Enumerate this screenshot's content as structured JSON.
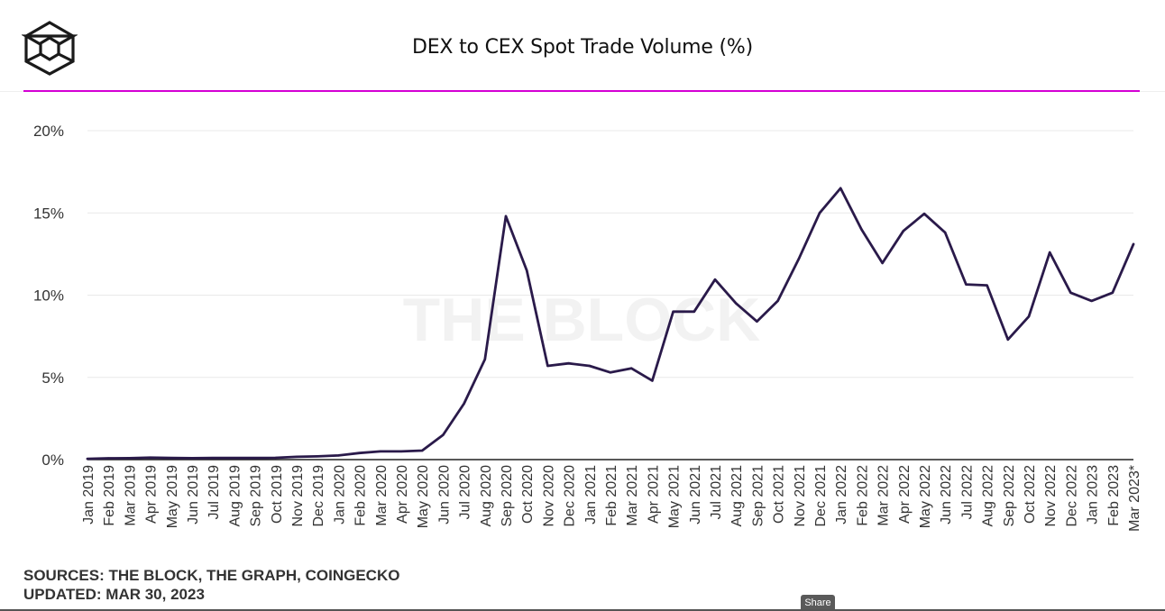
{
  "header": {
    "title": "DEX to CEX Spot Trade Volume (%)",
    "logo_icon": "the-block-cube-logo-icon",
    "accent_color": "#d400d4"
  },
  "footer": {
    "sources": "SOURCES: THE BLOCK, THE GRAPH, COINGECKO",
    "updated": "UPDATED: MAR 30, 2023"
  },
  "share": {
    "label": "Share"
  },
  "watermark": "THE BLOCK",
  "chart_data": {
    "type": "line",
    "title": "DEX to CEX Spot Trade Volume (%)",
    "xlabel": "",
    "ylabel": "",
    "ylim": [
      0,
      20
    ],
    "yticks": [
      0,
      5,
      10,
      15,
      20
    ],
    "ytick_labels": [
      "0%",
      "5%",
      "10%",
      "15%",
      "20%"
    ],
    "grid": true,
    "line_color": "#2a1a4a",
    "categories": [
      "Jan 2019",
      "Feb 2019",
      "Mar 2019",
      "Apr 2019",
      "May 2019",
      "Jun 2019",
      "Jul 2019",
      "Aug 2019",
      "Sep 2019",
      "Oct 2019",
      "Nov 2019",
      "Dec 2019",
      "Jan 2020",
      "Feb 2020",
      "Mar 2020",
      "Apr 2020",
      "May 2020",
      "Jun 2020",
      "Jul 2020",
      "Aug 2020",
      "Sep 2020",
      "Oct 2020",
      "Nov 2020",
      "Dec 2020",
      "Jan 2021",
      "Feb 2021",
      "Mar 2021",
      "Apr 2021",
      "May 2021",
      "Jun 2021",
      "Jul 2021",
      "Aug 2021",
      "Sep 2021",
      "Oct 2021",
      "Nov 2021",
      "Dec 2021",
      "Jan 2022",
      "Feb 2022",
      "Mar 2022",
      "Apr 2022",
      "May 2022",
      "Jun 2022",
      "Jul 2022",
      "Aug 2022",
      "Sep 2022",
      "Oct 2022",
      "Nov 2022",
      "Dec 2022",
      "Jan 2023",
      "Feb 2023",
      "Mar 2023*"
    ],
    "series": [
      {
        "values": [
          0.05,
          0.08,
          0.09,
          0.12,
          0.1,
          0.09,
          0.1,
          0.1,
          0.1,
          0.11,
          0.17,
          0.2,
          0.25,
          0.4,
          0.5,
          0.5,
          0.55,
          1.5,
          3.4,
          6.1,
          14.8,
          11.5,
          5.7,
          5.85,
          5.7,
          5.3,
          5.55,
          4.8,
          9.0,
          9.0,
          10.95,
          9.5,
          8.4,
          9.65,
          12.2,
          15.0,
          16.5,
          14.0,
          11.95,
          13.9,
          14.95,
          13.8,
          10.65,
          10.6,
          7.3,
          8.7,
          12.6,
          10.15,
          9.65,
          10.15,
          13.1
        ]
      }
    ]
  }
}
